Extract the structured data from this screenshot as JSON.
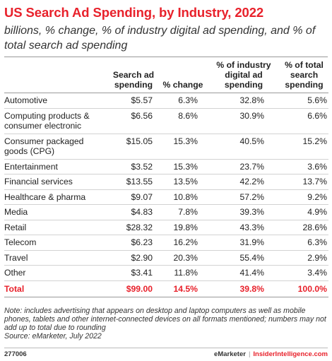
{
  "chart_data": {
    "type": "table",
    "title": "US Search Ad Spending, by Industry, 2022",
    "subtitle": "billions, % change, % of industry digital ad spending, and % of total search ad spending",
    "columns": [
      "",
      "Search ad spending",
      "% change",
      "% of industry digital ad spending",
      "% of total search spending"
    ],
    "rows": [
      {
        "category": "Automotive",
        "search_ad_spending": "$5.57",
        "pct_change": "6.3%",
        "pct_industry_digital": "32.8%",
        "pct_total_search": "5.6%"
      },
      {
        "category": "Computing products & consumer electronic",
        "search_ad_spending": "$6.56",
        "pct_change": "8.6%",
        "pct_industry_digital": "30.9%",
        "pct_total_search": "6.6%"
      },
      {
        "category": "Consumer packaged goods (CPG)",
        "search_ad_spending": "$15.05",
        "pct_change": "15.3%",
        "pct_industry_digital": "40.5%",
        "pct_total_search": "15.2%"
      },
      {
        "category": "Entertainment",
        "search_ad_spending": "$3.52",
        "pct_change": "15.3%",
        "pct_industry_digital": "23.7%",
        "pct_total_search": "3.6%"
      },
      {
        "category": "Financial services",
        "search_ad_spending": "$13.55",
        "pct_change": "13.5%",
        "pct_industry_digital": "42.2%",
        "pct_total_search": "13.7%"
      },
      {
        "category": "Healthcare & pharma",
        "search_ad_spending": "$9.07",
        "pct_change": "10.8%",
        "pct_industry_digital": "57.2%",
        "pct_total_search": "9.2%"
      },
      {
        "category": "Media",
        "search_ad_spending": "$4.83",
        "pct_change": "7.8%",
        "pct_industry_digital": "39.3%",
        "pct_total_search": "4.9%"
      },
      {
        "category": "Retail",
        "search_ad_spending": "$28.32",
        "pct_change": "19.8%",
        "pct_industry_digital": "43.3%",
        "pct_total_search": "28.6%"
      },
      {
        "category": "Telecom",
        "search_ad_spending": "$6.23",
        "pct_change": "16.2%",
        "pct_industry_digital": "31.9%",
        "pct_total_search": "6.3%"
      },
      {
        "category": "Travel",
        "search_ad_spending": "$2.90",
        "pct_change": "20.3%",
        "pct_industry_digital": "55.4%",
        "pct_total_search": "2.9%"
      },
      {
        "category": "Other",
        "search_ad_spending": "$3.41",
        "pct_change": "11.8%",
        "pct_industry_digital": "41.4%",
        "pct_total_search": "3.4%"
      }
    ],
    "total": {
      "category": "Total",
      "search_ad_spending": "$99.00",
      "pct_change": "14.5%",
      "pct_industry_digital": "39.8%",
      "pct_total_search": "100.0%"
    },
    "note": "Note: includes advertising that appears on desktop and laptop computers as well as mobile phones, tablets and other internet-connected devices on all formats mentioned; numbers may not add up to total due to rounding",
    "source": "Source: eMarketer, July 2022"
  },
  "footer": {
    "chart_id": "277006",
    "brand_emarketer": "eMarketer",
    "separator": "|",
    "brand_insider": "InsiderIntelligence.com"
  },
  "colors": {
    "accent": "#e8212b",
    "text": "#222222",
    "rule": "#999999"
  }
}
